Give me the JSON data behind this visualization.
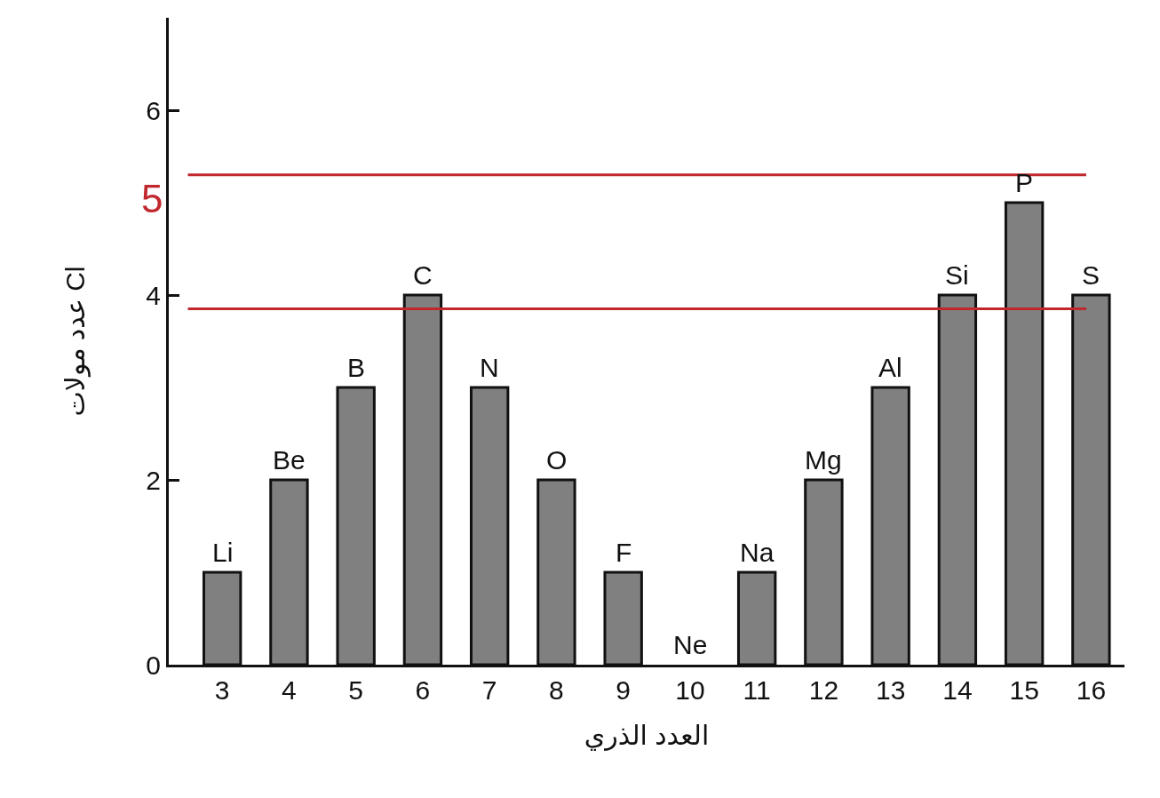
{
  "chart_data": {
    "type": "bar",
    "xlabel": "العدد الذري",
    "ylabel": "عدد مولات Cl",
    "categories": [
      "3",
      "4",
      "5",
      "6",
      "7",
      "8",
      "9",
      "10",
      "11",
      "12",
      "13",
      "14",
      "15",
      "16"
    ],
    "values": [
      1,
      2,
      3,
      4,
      3,
      2,
      1,
      0,
      1,
      2,
      3,
      4,
      5,
      4
    ],
    "color": "#808080",
    "ylim": [
      0,
      7
    ],
    "yticks": [
      0,
      2,
      4,
      6
    ],
    "grid": false,
    "legend": false,
    "annotations": [
      {
        "text": "Li",
        "x": "3",
        "y": 1
      },
      {
        "text": "Be",
        "x": "4",
        "y": 2
      },
      {
        "text": "B",
        "x": "5",
        "y": 3
      },
      {
        "text": "C",
        "x": "6",
        "y": 4
      },
      {
        "text": "N",
        "x": "7",
        "y": 3
      },
      {
        "text": "O",
        "x": "8",
        "y": 2
      },
      {
        "text": "F",
        "x": "9",
        "y": 1
      },
      {
        "text": "Ne",
        "x": "10",
        "y": 0
      },
      {
        "text": "Na",
        "x": "11",
        "y": 1
      },
      {
        "text": "Mg",
        "x": "12",
        "y": 2
      },
      {
        "text": "Al",
        "x": "13",
        "y": 3
      },
      {
        "text": "Si",
        "x": "14",
        "y": 4
      },
      {
        "text": "P",
        "x": "15",
        "y": 5
      },
      {
        "text": "S",
        "x": "16",
        "y": 4
      }
    ],
    "ref_lines": [
      {
        "axis": "y",
        "value": 5.3,
        "label": "5",
        "color": "#c0282d"
      },
      {
        "axis": "y",
        "value": 3.85,
        "color": "#c0282d"
      }
    ]
  }
}
